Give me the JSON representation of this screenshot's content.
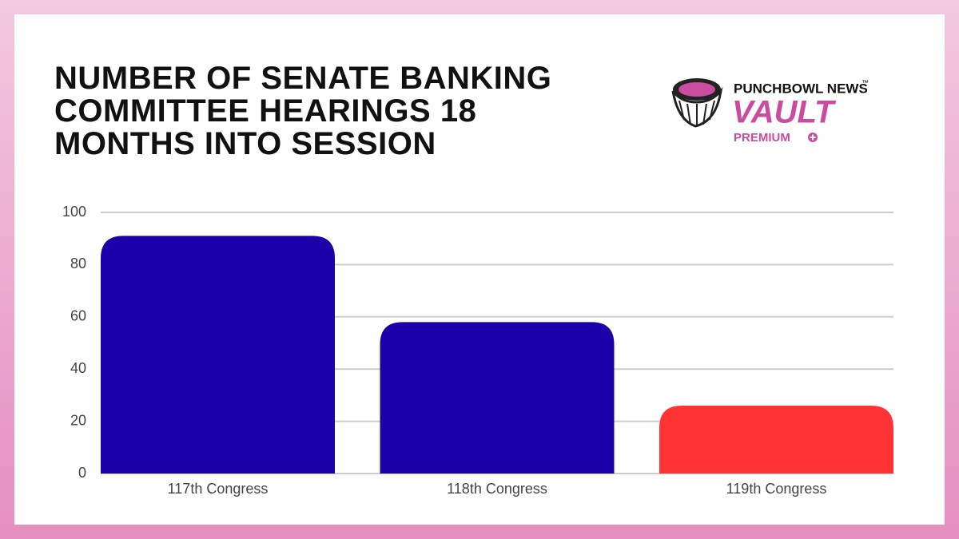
{
  "chart_data": {
    "type": "bar",
    "title": "NUMBER OF SENATE BANKING COMMITTEE HEARINGS 18 MONTHS INTO SESSION",
    "categories": [
      "117th Congress",
      "118th Congress",
      "119th Congress"
    ],
    "values": [
      91,
      58,
      26
    ],
    "colors": [
      "#1c00a8",
      "#1c00a8",
      "#ff3333"
    ],
    "ylim": [
      0,
      100
    ],
    "yticks": [
      0,
      20,
      40,
      60,
      80,
      100
    ],
    "grid": true
  },
  "logo": {
    "brand": "PUNCHBOWL NEWS",
    "trademark": "™",
    "product": "VAULT",
    "tier": "PREMIUM"
  }
}
